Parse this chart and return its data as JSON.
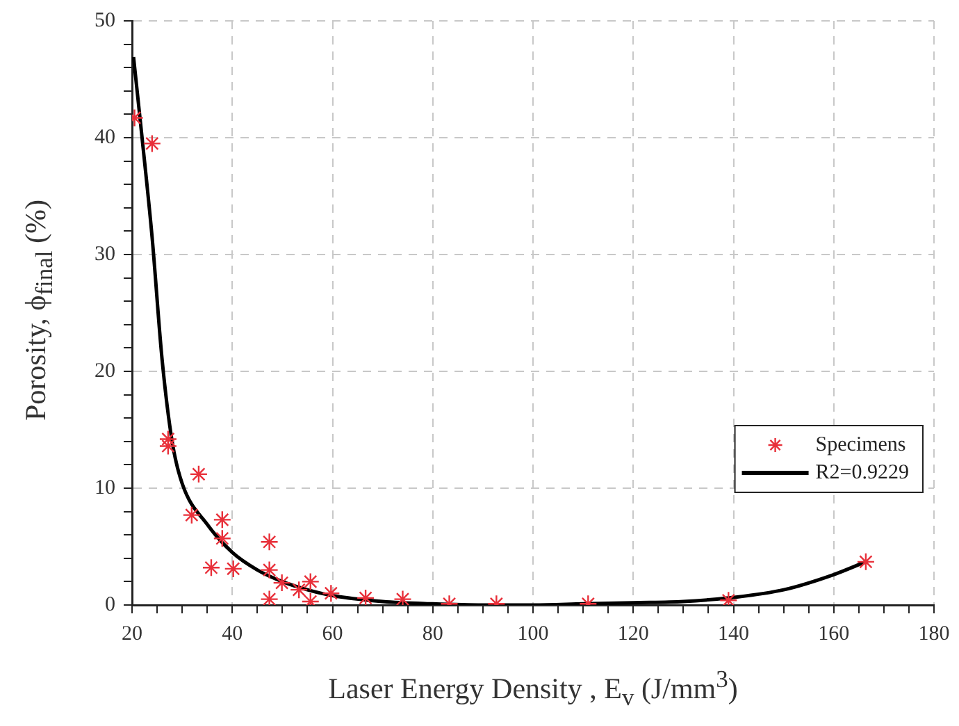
{
  "chart_data": {
    "type": "scatter",
    "xlabel": "Laser Energy Density , E$_{v}$ (J/mm$^{3}$)",
    "ylabel": "Porosity, ϕ$_{final}$ (%)",
    "xlim": [
      20,
      180
    ],
    "xticks": [
      20,
      {
        "value": 25,
        "label": null
      },
      {
        "value": 30,
        "label": null
      },
      {
        "value": 35,
        "label": null
      },
      40,
      {
        "value": 45,
        "label": null
      },
      {
        "value": 50,
        "label": null
      },
      {
        "value": 55,
        "label": null
      },
      60,
      {
        "value": 65,
        "label": null
      },
      {
        "value": 70,
        "label": null
      },
      {
        "value": 75,
        "label": null
      },
      80,
      {
        "value": 85,
        "label": null
      },
      {
        "value": 90,
        "label": null
      },
      {
        "value": 95,
        "label": null
      },
      100,
      {
        "value": 105,
        "label": null
      },
      {
        "value": 110,
        "label": null
      },
      {
        "value": 115,
        "label": null
      },
      120,
      {
        "value": 125,
        "label": null
      },
      {
        "value": 130,
        "label": null
      },
      {
        "value": 135,
        "label": null
      },
      140,
      {
        "value": 145,
        "label": null
      },
      {
        "value": 150,
        "label": null
      },
      {
        "value": 155,
        "label": null
      },
      160,
      {
        "value": 165,
        "label": null
      },
      {
        "value": 170,
        "label": null
      },
      {
        "value": 175,
        "label": null
      },
      180
    ],
    "ylim": [
      0,
      50
    ],
    "yticks": [
      0,
      {
        "value": 2,
        "label": null
      },
      {
        "value": 4,
        "label": null
      },
      {
        "value": 6,
        "label": null
      },
      {
        "value": 8,
        "label": null
      },
      10,
      {
        "value": 12,
        "label": null
      },
      {
        "value": 14,
        "label": null
      },
      {
        "value": 16,
        "label": null
      },
      {
        "value": 18,
        "label": null
      },
      20,
      {
        "value": 22,
        "label": null
      },
      {
        "value": 24,
        "label": null
      },
      {
        "value": 26,
        "label": null
      },
      {
        "value": 28,
        "label": null
      },
      30,
      {
        "value": 32,
        "label": null
      },
      {
        "value": 34,
        "label": null
      },
      {
        "value": 36,
        "label": null
      },
      {
        "value": 38,
        "label": null
      },
      40,
      {
        "value": 42,
        "label": null
      },
      {
        "value": 44,
        "label": null
      },
      {
        "value": 46,
        "label": null
      },
      {
        "value": 48,
        "label": null
      },
      50
    ],
    "grid": true,
    "legend": "right",
    "series": [
      {
        "name": "Specimens",
        "marker": "cross",
        "color": "#e8303a",
        "x": [
          20.5,
          24,
          27.2,
          27.2,
          33.3,
          31.9,
          38,
          38,
          35.8,
          40.2,
          47.4,
          47.4,
          47.4,
          49.9,
          53.3,
          55.6,
          55.6,
          59.7,
          66.6,
          74,
          83.3,
          92.7,
          111,
          139,
          166.4
        ],
        "values": [
          41.7,
          39.5,
          14.2,
          13.6,
          11.2,
          7.7,
          7.3,
          5.7,
          3.2,
          3.1,
          5.4,
          3.0,
          0.5,
          1.9,
          1.3,
          2.0,
          0.3,
          1.0,
          0.6,
          0.5,
          0.1,
          0.1,
          0.1,
          0.4,
          3.7
        ]
      },
      {
        "name": "R2=0.9229",
        "type": "line",
        "marker": "none",
        "line_style": "solid",
        "color": "#000000",
        "x": [
          20.3,
          22,
          24,
          26,
          28,
          30,
          35,
          40,
          45,
          50,
          55,
          60,
          70,
          80,
          90,
          100,
          110,
          120,
          130,
          140,
          150,
          160,
          166.4
        ],
        "values": [
          46.9,
          40,
          31.5,
          21,
          14,
          10.4,
          6.9,
          4.5,
          3,
          2,
          1.3,
          0.8,
          0.3,
          0.1,
          0,
          0,
          0.1,
          0.2,
          0.3,
          0.65,
          1.3,
          2.6,
          3.7
        ]
      }
    ]
  }
}
